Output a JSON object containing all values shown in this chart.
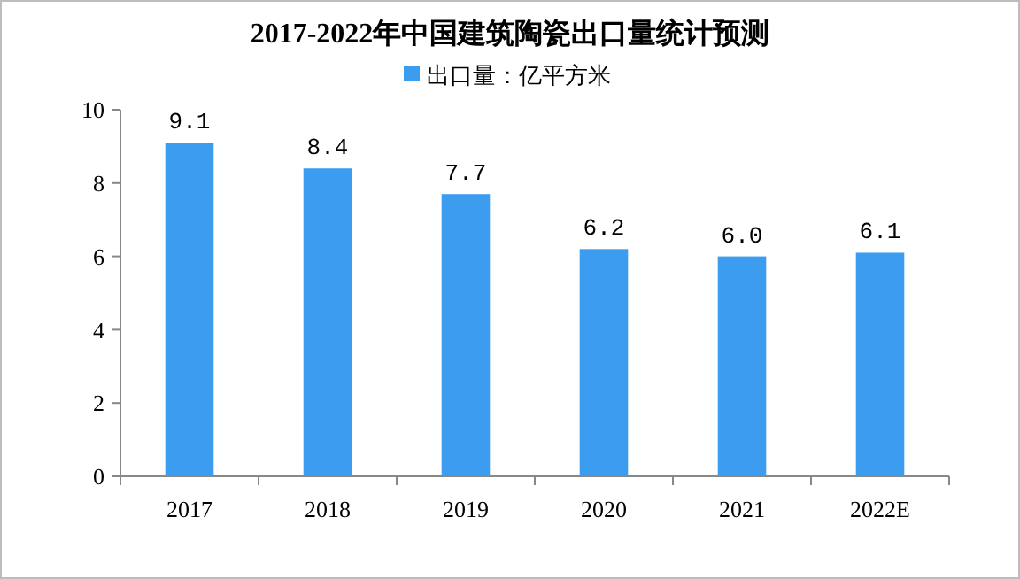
{
  "chart_data": {
    "type": "bar",
    "title": "2017-2022年中国建筑陶瓷出口量统计预测",
    "categories": [
      "2017",
      "2018",
      "2019",
      "2020",
      "2021",
      "2022E"
    ],
    "series": [
      {
        "name": "出口量：亿平方米",
        "color": "#3c9cf0",
        "values": [
          9.1,
          8.4,
          7.7,
          6.2,
          6.0,
          6.1
        ]
      }
    ],
    "value_labels": [
      "9.1",
      "8.4",
      "7.7",
      "6.2",
      "6.0",
      "6.1"
    ],
    "ylim": [
      0,
      10
    ],
    "yticks": [
      0,
      2,
      4,
      6,
      8,
      10
    ],
    "grid": false,
    "legend": "top"
  }
}
